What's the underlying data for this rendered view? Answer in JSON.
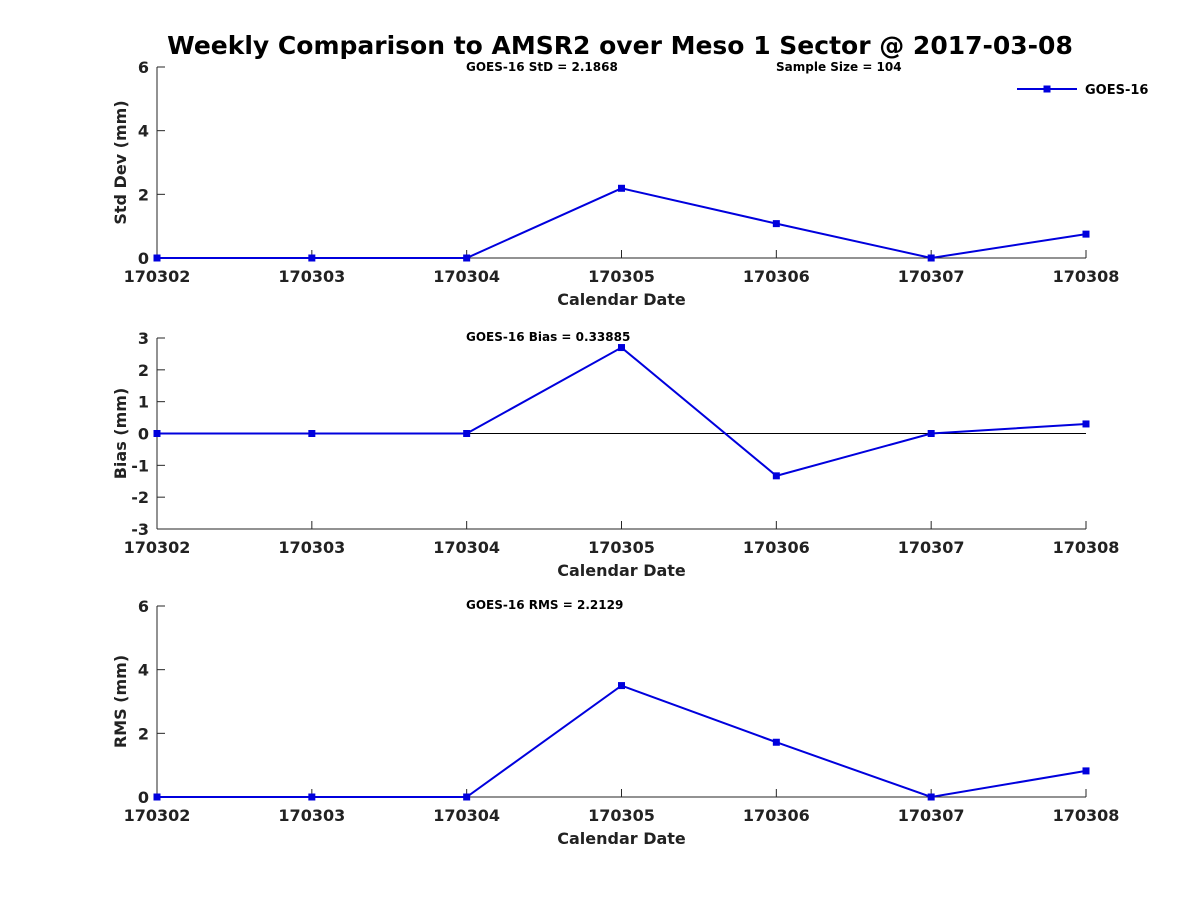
{
  "figure": {
    "title": "Weekly Comparison to AMSR2 over Meso 1 Sector @ 2017-03-08"
  },
  "chart_data": [
    {
      "type": "line",
      "title": "",
      "xlabel": "Calendar Date",
      "ylabel": "Std Dev (mm)",
      "categories": [
        "170302",
        "170303",
        "170304",
        "170305",
        "170306",
        "170307",
        "170308"
      ],
      "ylim": [
        0,
        6
      ],
      "yticks": [
        "0",
        "2",
        "4",
        "6"
      ],
      "series": [
        {
          "name": "GOES-16",
          "values": [
            0,
            0,
            0,
            2.19,
            1.08,
            0,
            0.75
          ]
        }
      ],
      "annotations": [
        "GOES-16 StD = 2.1868",
        "Sample Size = 104"
      ],
      "legend": {
        "position": "top-right",
        "entries": [
          "GOES-16"
        ]
      },
      "zero_line": false,
      "color": "#0000dd"
    },
    {
      "type": "line",
      "title": "",
      "xlabel": "Calendar Date",
      "ylabel": "Bias (mm)",
      "categories": [
        "170302",
        "170303",
        "170304",
        "170305",
        "170306",
        "170307",
        "170308"
      ],
      "ylim": [
        -3,
        3
      ],
      "yticks": [
        "-3",
        "-2",
        "-1",
        "0",
        "1",
        "2",
        "3"
      ],
      "series": [
        {
          "values": [
            0,
            0,
            0,
            2.7,
            -1.33,
            0,
            0.3
          ]
        }
      ],
      "annotations": [
        "GOES-16 Bias  = 0.33885"
      ],
      "zero_line": true,
      "color": "#0000dd"
    },
    {
      "type": "line",
      "title": "",
      "xlabel": "Calendar Date",
      "ylabel": "RMS (mm)",
      "categories": [
        "170302",
        "170303",
        "170304",
        "170305",
        "170306",
        "170307",
        "170308"
      ],
      "ylim": [
        0,
        6
      ],
      "yticks": [
        "0",
        "2",
        "4",
        "6"
      ],
      "series": [
        {
          "values": [
            0,
            0,
            0,
            3.5,
            1.72,
            0,
            0.82
          ]
        }
      ],
      "annotations": [
        "GOES-16 RMS = 2.2129"
      ],
      "zero_line": false,
      "color": "#0000dd"
    }
  ]
}
